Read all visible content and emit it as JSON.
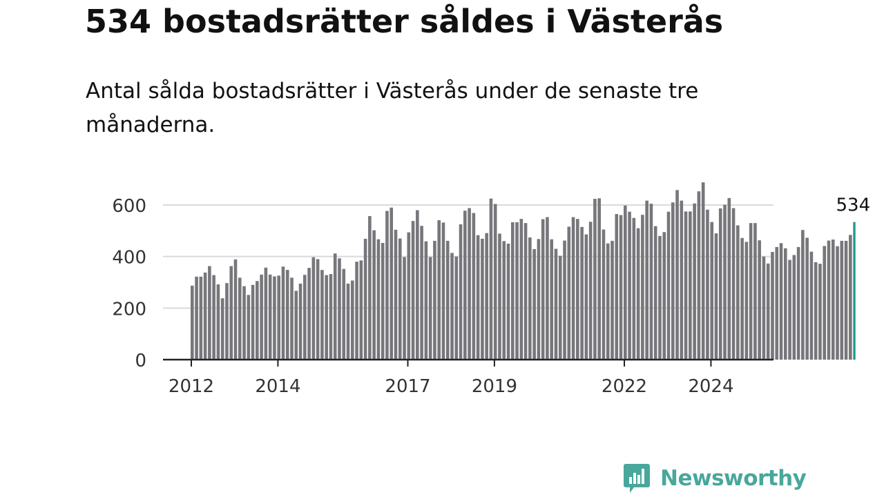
{
  "title": "534 bostadsrätter såldes i Västerås",
  "subtitle": "Antal sålda bostadsrätter i Västerås under de senaste tre månaderna.",
  "brand": {
    "name": "Newsworthy",
    "icon": "newsworthy-logo-icon",
    "color": "#49a79b"
  },
  "chart_data": {
    "type": "bar",
    "title": "",
    "xlabel": "",
    "ylabel": "",
    "ylim": [
      0,
      700
    ],
    "yticks": [
      0,
      200,
      400,
      600
    ],
    "grid": true,
    "legend": "none",
    "start": "2012-01",
    "frequency": "monthly",
    "xticks": [
      {
        "label": "2012",
        "index": 0
      },
      {
        "label": "2014",
        "index": 20
      },
      {
        "label": "2017",
        "index": 50
      },
      {
        "label": "2019",
        "index": 70
      },
      {
        "label": "2022",
        "index": 100
      },
      {
        "label": "2024",
        "index": 120
      }
    ],
    "bar_color": "#76767b",
    "highlight_color": "#1f9a91",
    "highlight_label": "534",
    "values": [
      287,
      322,
      322,
      338,
      363,
      328,
      292,
      238,
      297,
      363,
      389,
      318,
      285,
      251,
      290,
      305,
      330,
      357,
      330,
      323,
      326,
      361,
      348,
      318,
      267,
      295,
      329,
      356,
      397,
      390,
      348,
      328,
      332,
      412,
      393,
      352,
      295,
      307,
      380,
      385,
      469,
      557,
      502,
      467,
      453,
      577,
      590,
      504,
      470,
      398,
      494,
      538,
      580,
      519,
      459,
      398,
      461,
      541,
      532,
      461,
      414,
      400,
      525,
      578,
      588,
      569,
      483,
      469,
      491,
      625,
      604,
      489,
      460,
      450,
      533,
      533,
      546,
      530,
      474,
      429,
      468,
      545,
      553,
      467,
      430,
      403,
      462,
      516,
      553,
      546,
      515,
      486,
      535,
      624,
      626,
      505,
      451,
      461,
      565,
      561,
      598,
      574,
      550,
      510,
      562,
      617,
      605,
      518,
      480,
      495,
      574,
      610,
      658,
      617,
      575,
      575,
      606,
      653,
      688,
      582,
      534,
      490,
      587,
      601,
      627,
      588,
      521,
      472,
      457,
      530,
      530,
      463,
      400,
      373,
      418,
      437,
      452,
      432,
      387,
      406,
      437,
      503,
      473,
      419,
      378,
      372,
      441,
      462,
      466,
      440,
      461,
      461,
      484,
      534
    ]
  }
}
